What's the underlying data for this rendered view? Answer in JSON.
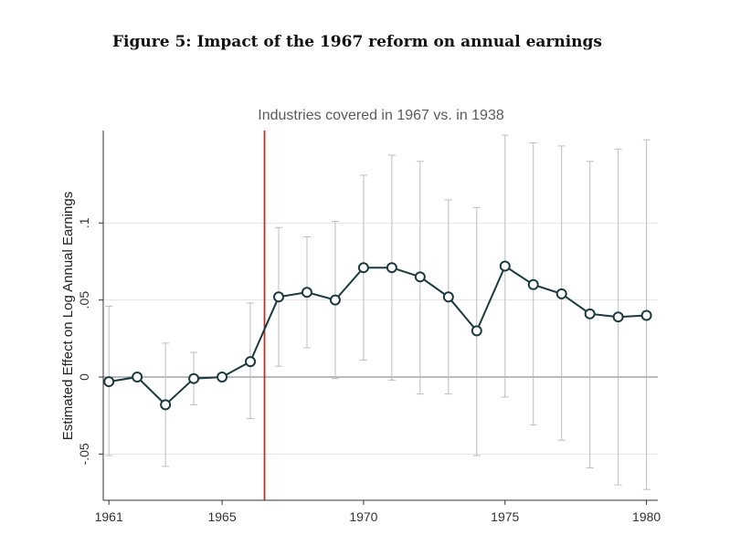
{
  "figure": {
    "caption": "Figure 5: Impact of the 1967 reform on annual earnings"
  },
  "chart_data": {
    "type": "line",
    "title": "Industries covered in 1967 vs. in 1938",
    "xlabel": "",
    "ylabel": "Estimated Effect on Log Annual Earnings",
    "x": [
      1961,
      1962,
      1963,
      1964,
      1965,
      1966,
      1967,
      1968,
      1969,
      1970,
      1971,
      1972,
      1973,
      1974,
      1975,
      1976,
      1977,
      1978,
      1979,
      1980
    ],
    "series": [
      {
        "values": [
          -0.003,
          0.0,
          -0.018,
          -0.001,
          0.0,
          0.01,
          0.052,
          0.055,
          0.05,
          0.071,
          0.071,
          0.065,
          0.052,
          0.03,
          0.072,
          0.06,
          0.054,
          0.041,
          0.039,
          0.04
        ],
        "ci_low": [
          -0.051,
          null,
          -0.058,
          -0.018,
          null,
          -0.027,
          0.007,
          0.019,
          -0.001,
          0.011,
          -0.002,
          -0.011,
          -0.011,
          -0.051,
          -0.013,
          -0.031,
          -0.041,
          -0.059,
          -0.07,
          -0.073
        ],
        "ci_high": [
          0.046,
          null,
          0.022,
          0.016,
          null,
          0.048,
          0.097,
          0.091,
          0.101,
          0.131,
          0.144,
          0.14,
          0.115,
          0.11,
          0.157,
          0.152,
          0.15,
          0.14,
          0.148,
          0.154
        ]
      }
    ],
    "xticks": [
      1961,
      1965,
      1970,
      1975,
      1980
    ],
    "xtick_labels": [
      "1961",
      "1965",
      "1970",
      "1975",
      "1980"
    ],
    "yticks": [
      -0.05,
      0,
      0.05,
      0.1
    ],
    "ytick_labels": [
      "-.05",
      "0",
      ".05",
      ".1"
    ],
    "xlim": [
      1960.8,
      1980.4
    ],
    "ylim": [
      -0.08,
      0.16
    ],
    "reference_line_x": 1966.5,
    "zero_line": true,
    "grid": true,
    "colors": {
      "line": "#1b3a3f",
      "marker_fill": "#ffffff",
      "ci": "#bdbdbd",
      "reform_line": "#b03a2e",
      "grid": "#e3e3e3",
      "zero_line": "#777777",
      "axis": "#333333"
    }
  }
}
